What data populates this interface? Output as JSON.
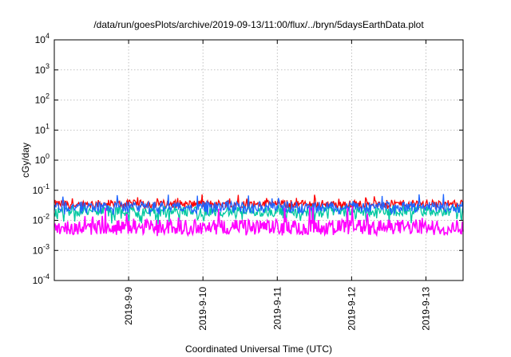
{
  "chart_data": {
    "type": "line",
    "title": "/data/run/goesPlots/archive/2019-09-13/11:00/flux/../bryn/5daysEarthData.plot",
    "xlabel": "Coordinated Universal Time (UTC)",
    "ylabel": "cGy/day",
    "y_scale": "log",
    "ylim": [
      0.0001,
      10000
    ],
    "xlim": [
      "2019-09-08T00:00",
      "2019-09-13T12:00"
    ],
    "grid": true,
    "legend": "none",
    "y_ticks": [
      {
        "value": 0.0001,
        "base": "10",
        "exp": "-4"
      },
      {
        "value": 0.001,
        "base": "10",
        "exp": "-3"
      },
      {
        "value": 0.01,
        "base": "10",
        "exp": "-2"
      },
      {
        "value": 0.1,
        "base": "10",
        "exp": "-1"
      },
      {
        "value": 1,
        "base": "10",
        "exp": "0"
      },
      {
        "value": 10,
        "base": "10",
        "exp": "1"
      },
      {
        "value": 100,
        "base": "10",
        "exp": "2"
      },
      {
        "value": 1000,
        "base": "10",
        "exp": "3"
      },
      {
        "value": 10000,
        "base": "10",
        "exp": "4"
      }
    ],
    "x_ticks": [
      {
        "value": "2019-09-09T00:00",
        "label": "2019-9-9"
      },
      {
        "value": "2019-09-10T00:00",
        "label": "2019-9-10"
      },
      {
        "value": "2019-09-11T00:00",
        "label": "2019-9-11"
      },
      {
        "value": "2019-09-12T00:00",
        "label": "2019-9-12"
      },
      {
        "value": "2019-09-13T00:00",
        "label": "2019-9-13"
      }
    ],
    "series": [
      {
        "color": "#ff0000",
        "baseline": 0.035,
        "low": 0.022,
        "high": 0.075
      },
      {
        "color": "#00c8a0",
        "baseline": 0.02,
        "low": 0.007,
        "high": 0.035
      },
      {
        "color": "#1e64ff",
        "baseline": 0.028,
        "low": 0.015,
        "high": 0.075
      },
      {
        "color": "#ff00ff",
        "baseline": 0.006,
        "low": 0.003,
        "high": 0.03
      }
    ]
  }
}
